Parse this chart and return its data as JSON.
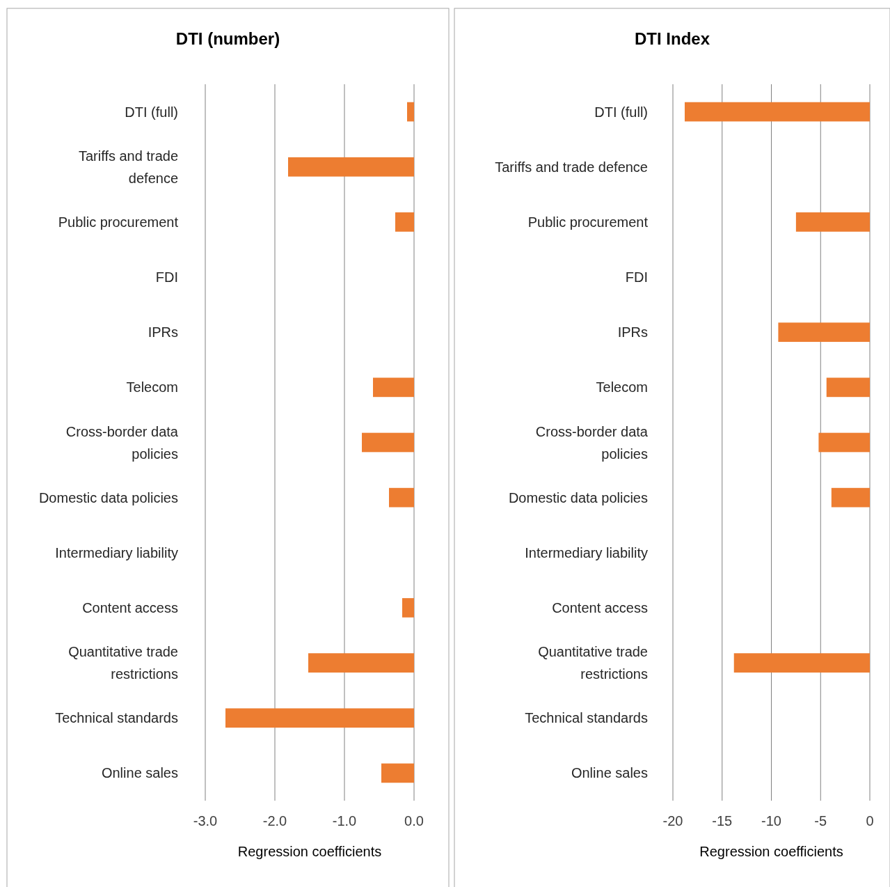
{
  "chart_data": [
    {
      "type": "bar",
      "orientation": "horizontal",
      "title": "DTI (number)",
      "xlabel": "Regression coefficients",
      "categories": [
        "DTI (full)",
        "Tariffs and trade defence",
        "Public procurement",
        "FDI",
        "IPRs",
        "Telecom",
        "Cross-border data policies",
        "Domestic data policies",
        "Intermediary liability",
        "Content access",
        "Quantitative trade restrictions",
        "Technical standards",
        "Online sales"
      ],
      "values": [
        -0.1,
        -1.81,
        -0.27,
        null,
        null,
        -0.59,
        -0.75,
        -0.36,
        null,
        -0.17,
        -1.52,
        -2.71,
        -0.47
      ],
      "color": "#ed7d31",
      "xlim": [
        -3,
        0
      ],
      "xticks": [
        {
          "value": -3,
          "label": "-3.0"
        },
        {
          "value": -2,
          "label": "-2.0"
        },
        {
          "value": -1,
          "label": "-1.0"
        },
        {
          "value": 0,
          "label": "0.0"
        }
      ],
      "grid": "x"
    },
    {
      "type": "bar",
      "orientation": "horizontal",
      "title": "DTI Index",
      "xlabel": "Regression coefficients",
      "categories": [
        "DTI (full)",
        "Tariffs and trade defence",
        "Public procurement",
        "FDI",
        "IPRs",
        "Telecom",
        "Cross-border data policies",
        "Domestic data policies",
        "Intermediary liability",
        "Content access",
        "Quantitative trade restrictions",
        "Technical standards",
        "Online sales"
      ],
      "values": [
        -18.8,
        null,
        -7.5,
        null,
        -9.3,
        -4.4,
        -5.2,
        -3.9,
        null,
        null,
        -13.8,
        null,
        null
      ],
      "color": "#ed7d31",
      "xlim": [
        -20,
        0
      ],
      "xticks": [
        -20,
        -15,
        -10,
        -5,
        0
      ],
      "grid": "x"
    }
  ]
}
